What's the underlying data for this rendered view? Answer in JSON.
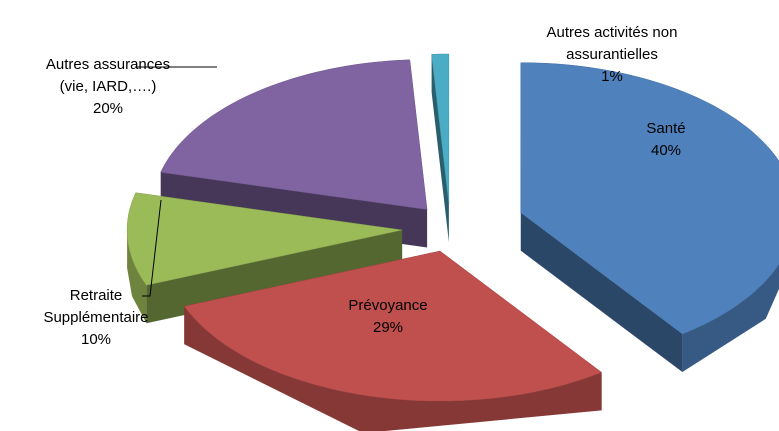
{
  "chart_data": {
    "type": "pie",
    "categories": [
      "Santé",
      "Prévoyance",
      "Retraite Supplémentaire",
      "Autres assurances (vie, IARD,….)",
      "Autres activités non assurantielles"
    ],
    "values": [
      40,
      29,
      10,
      20,
      1
    ],
    "value_labels": [
      "40%",
      "29%",
      "10%",
      "20%",
      "1%"
    ],
    "colors": [
      "#4f81bd",
      "#c0504d",
      "#9bbb59",
      "#8064a2",
      "#4bacc6"
    ]
  }
}
